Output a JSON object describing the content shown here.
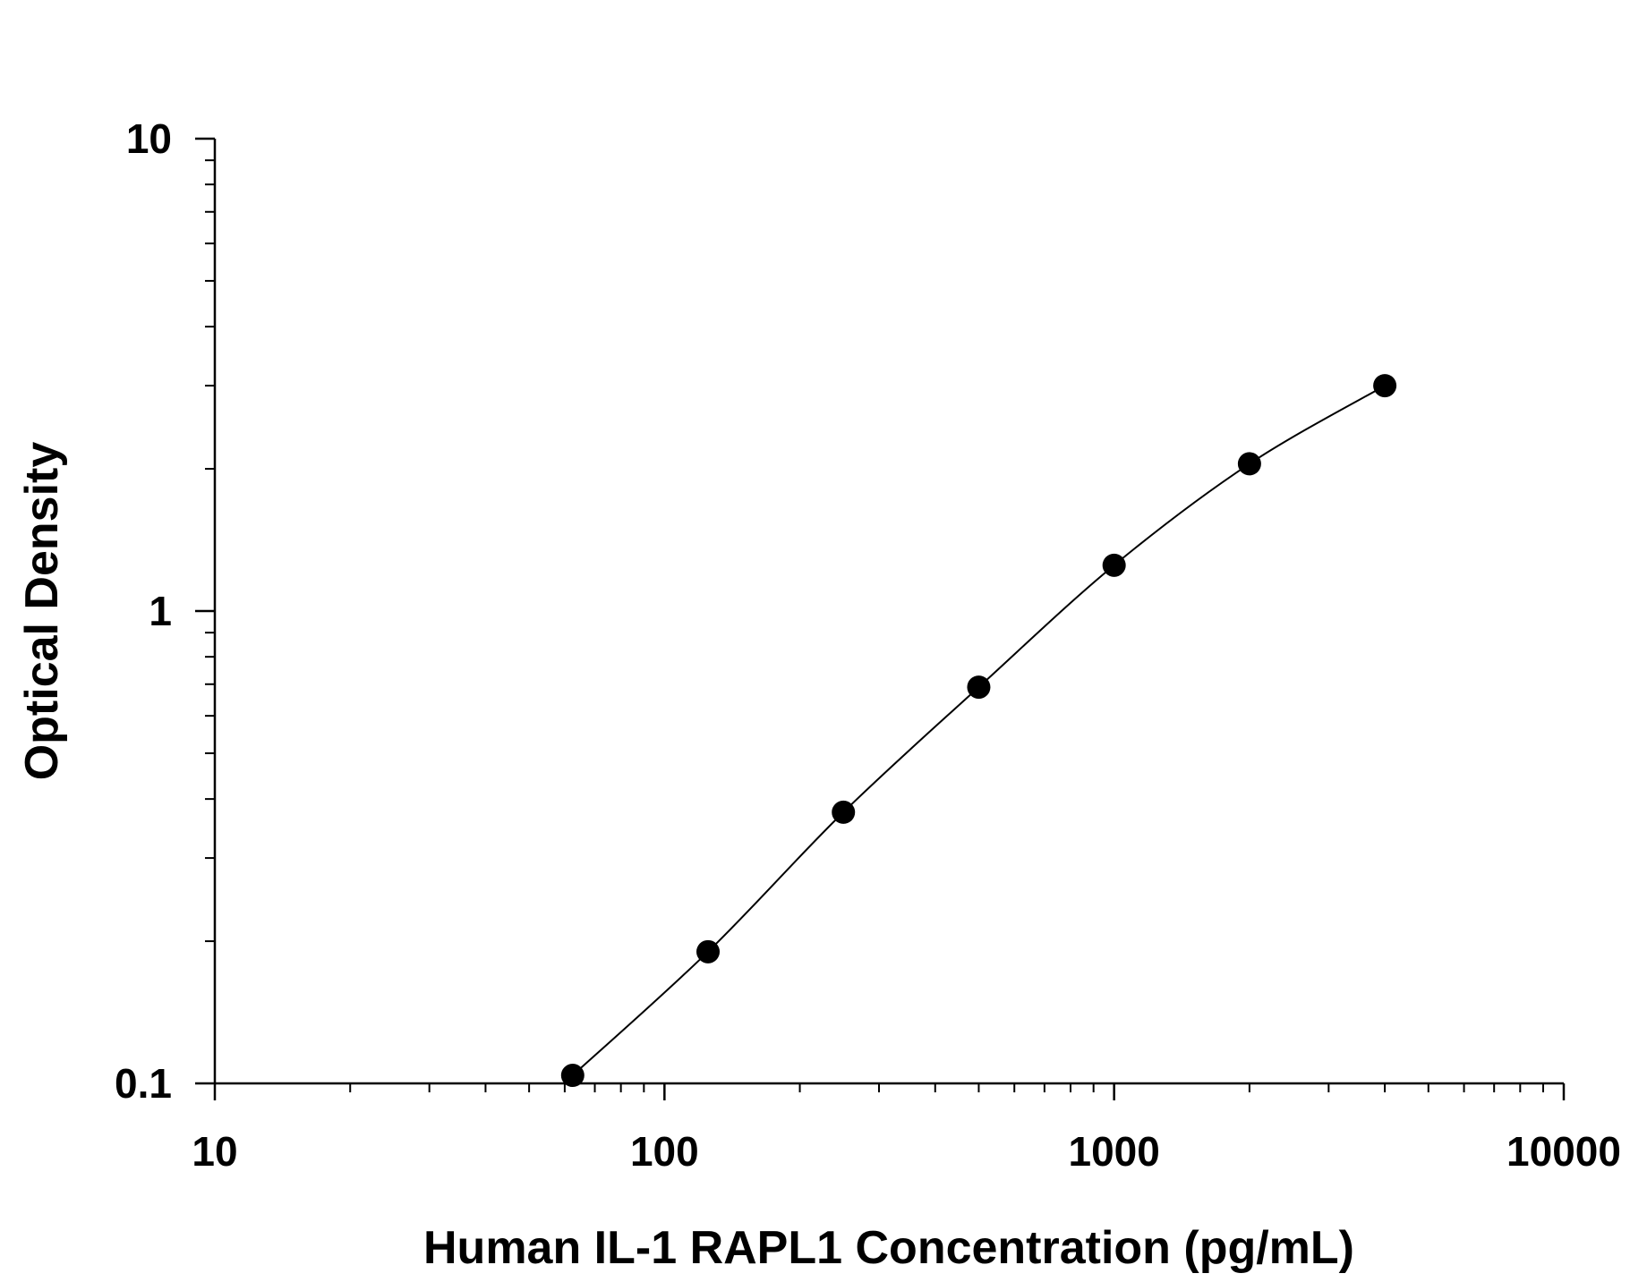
{
  "chart_data": {
    "type": "scatter",
    "title": "",
    "xlabel": "Human IL-1 RAPL1 Concentration (pg/mL)",
    "ylabel": "Optical Density",
    "x_scale": "log",
    "y_scale": "log",
    "xlim": [
      10,
      10000
    ],
    "ylim": [
      0.1,
      10
    ],
    "x_ticks": [
      {
        "value": 10,
        "label": "10"
      },
      {
        "value": 100,
        "label": "100"
      },
      {
        "value": 1000,
        "label": "1000"
      },
      {
        "value": 10000,
        "label": "10000"
      }
    ],
    "y_ticks": [
      {
        "value": 0.1,
        "label": "0.1"
      },
      {
        "value": 1,
        "label": "1"
      },
      {
        "value": 10,
        "label": "10"
      }
    ],
    "grid": false,
    "legend": "none",
    "colors": {
      "marker": "#000000",
      "line": "#000000",
      "axis": "#000000"
    },
    "series": [
      {
        "x": [
          62.5,
          125,
          250,
          500,
          1000,
          2000,
          4000
        ],
        "y": [
          0.104,
          0.19,
          0.375,
          0.69,
          1.25,
          2.05,
          3.0
        ],
        "fit_curve": true
      }
    ]
  }
}
